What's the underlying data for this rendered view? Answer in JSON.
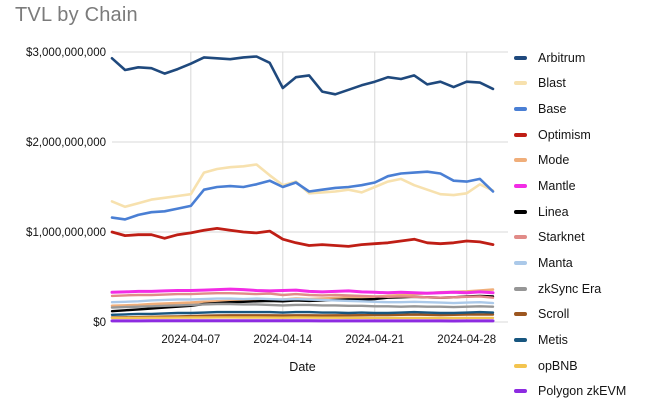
{
  "title": "TVL by Chain",
  "chart_data": {
    "type": "line",
    "title": "TVL by Chain",
    "xlabel": "Date",
    "ylabel": "",
    "ylim_billions": [
      0,
      3
    ],
    "grid": true,
    "legend_position": "right",
    "colors": {
      "background": "#ffffff",
      "gridline": "#d8d8d8",
      "axis_text": "#121212",
      "title_text": "#7b7b7b"
    },
    "x_dates": [
      "2024-04-01",
      "2024-04-02",
      "2024-04-03",
      "2024-04-04",
      "2024-04-05",
      "2024-04-06",
      "2024-04-07",
      "2024-04-08",
      "2024-04-09",
      "2024-04-10",
      "2024-04-11",
      "2024-04-12",
      "2024-04-13",
      "2024-04-14",
      "2024-04-15",
      "2024-04-16",
      "2024-04-17",
      "2024-04-18",
      "2024-04-19",
      "2024-04-20",
      "2024-04-21",
      "2024-04-22",
      "2024-04-23",
      "2024-04-24",
      "2024-04-25",
      "2024-04-26",
      "2024-04-27",
      "2024-04-28",
      "2024-04-29",
      "2024-04-30"
    ],
    "xticks": [
      {
        "index": 6,
        "label": "2024-04-07"
      },
      {
        "index": 13,
        "label": "2024-04-14"
      },
      {
        "index": 20,
        "label": "2024-04-21"
      },
      {
        "index": 27,
        "label": "2024-04-28"
      }
    ],
    "yticks": [
      {
        "value_billions": 0,
        "label": "$0"
      },
      {
        "value_billions": 1,
        "label": "$1,000,000,000"
      },
      {
        "value_billions": 2,
        "label": "$2,000,000,000"
      },
      {
        "value_billions": 3,
        "label": "$3,000,000,000"
      }
    ],
    "series": [
      {
        "name": "Arbitrum",
        "color": "#1f497d",
        "line_width": 2.6,
        "values_billions": [
          2.93,
          2.8,
          2.83,
          2.82,
          2.76,
          2.81,
          2.87,
          2.94,
          2.93,
          2.92,
          2.94,
          2.95,
          2.88,
          2.6,
          2.72,
          2.74,
          2.56,
          2.53,
          2.58,
          2.63,
          2.67,
          2.72,
          2.7,
          2.74,
          2.64,
          2.67,
          2.61,
          2.67,
          2.66,
          2.59
        ]
      },
      {
        "name": "Blast",
        "color": "#f7e1ae",
        "line_width": 2.6,
        "values_billions": [
          1.34,
          1.28,
          1.32,
          1.36,
          1.38,
          1.4,
          1.42,
          1.66,
          1.7,
          1.72,
          1.73,
          1.75,
          1.63,
          1.52,
          1.56,
          1.43,
          1.44,
          1.45,
          1.47,
          1.44,
          1.5,
          1.56,
          1.59,
          1.52,
          1.47,
          1.42,
          1.41,
          1.43,
          1.53,
          1.46
        ]
      },
      {
        "name": "Base",
        "color": "#4a7fd4",
        "line_width": 2.6,
        "values_billions": [
          1.16,
          1.14,
          1.19,
          1.22,
          1.23,
          1.26,
          1.29,
          1.47,
          1.5,
          1.51,
          1.5,
          1.53,
          1.57,
          1.5,
          1.55,
          1.45,
          1.47,
          1.49,
          1.5,
          1.52,
          1.55,
          1.62,
          1.65,
          1.66,
          1.67,
          1.65,
          1.57,
          1.56,
          1.59,
          1.45
        ]
      },
      {
        "name": "Optimism",
        "color": "#bf1e15",
        "line_width": 2.8,
        "values_billions": [
          1.0,
          0.96,
          0.97,
          0.97,
          0.93,
          0.97,
          0.99,
          1.02,
          1.04,
          1.02,
          1.0,
          0.99,
          1.01,
          0.92,
          0.88,
          0.85,
          0.86,
          0.85,
          0.84,
          0.86,
          0.87,
          0.88,
          0.9,
          0.92,
          0.88,
          0.87,
          0.88,
          0.9,
          0.89,
          0.86
        ]
      },
      {
        "name": "Mode",
        "color": "#f0ae7a",
        "line_width": 2.6,
        "values_billions": [
          0.18,
          0.185,
          0.19,
          0.2,
          0.205,
          0.21,
          0.215,
          0.225,
          0.23,
          0.235,
          0.23,
          0.235,
          0.24,
          0.25,
          0.26,
          0.255,
          0.26,
          0.265,
          0.27,
          0.275,
          0.28,
          0.29,
          0.3,
          0.31,
          0.32,
          0.33,
          0.335,
          0.34,
          0.35,
          0.36
        ]
      },
      {
        "name": "Mantle",
        "color": "#f22ce5",
        "line_width": 3,
        "values_billions": [
          0.33,
          0.335,
          0.34,
          0.34,
          0.345,
          0.35,
          0.35,
          0.355,
          0.36,
          0.365,
          0.36,
          0.35,
          0.345,
          0.35,
          0.355,
          0.34,
          0.335,
          0.34,
          0.345,
          0.335,
          0.33,
          0.325,
          0.33,
          0.325,
          0.32,
          0.325,
          0.33,
          0.325,
          0.335,
          0.325
        ]
      },
      {
        "name": "Linea",
        "color": "#000000",
        "line_width": 2.4,
        "values_billions": [
          0.12,
          0.13,
          0.14,
          0.15,
          0.16,
          0.17,
          0.18,
          0.2,
          0.21,
          0.22,
          0.225,
          0.23,
          0.235,
          0.23,
          0.24,
          0.235,
          0.24,
          0.245,
          0.25,
          0.25,
          0.255,
          0.27,
          0.275,
          0.28,
          0.275,
          0.27,
          0.275,
          0.285,
          0.29,
          0.285
        ]
      },
      {
        "name": "Starknet",
        "color": "#e18b88",
        "line_width": 2.4,
        "values_billions": [
          0.29,
          0.295,
          0.3,
          0.3,
          0.305,
          0.31,
          0.31,
          0.315,
          0.32,
          0.32,
          0.315,
          0.31,
          0.315,
          0.3,
          0.31,
          0.3,
          0.295,
          0.3,
          0.295,
          0.29,
          0.285,
          0.28,
          0.285,
          0.28,
          0.275,
          0.27,
          0.275,
          0.28,
          0.285,
          0.27
        ]
      },
      {
        "name": "Manta",
        "color": "#abc9e9",
        "line_width": 2.4,
        "values_billions": [
          0.22,
          0.225,
          0.23,
          0.24,
          0.245,
          0.25,
          0.25,
          0.255,
          0.26,
          0.26,
          0.255,
          0.26,
          0.255,
          0.25,
          0.255,
          0.25,
          0.245,
          0.24,
          0.235,
          0.23,
          0.225,
          0.22,
          0.22,
          0.225,
          0.22,
          0.215,
          0.21,
          0.215,
          0.22,
          0.21
        ]
      },
      {
        "name": "zkSync Era",
        "color": "#969696",
        "line_width": 2.4,
        "values_billions": [
          0.16,
          0.165,
          0.17,
          0.175,
          0.18,
          0.185,
          0.19,
          0.195,
          0.2,
          0.2,
          0.195,
          0.195,
          0.19,
          0.185,
          0.19,
          0.19,
          0.185,
          0.185,
          0.18,
          0.18,
          0.175,
          0.175,
          0.17,
          0.175,
          0.17,
          0.17,
          0.165,
          0.17,
          0.175,
          0.17
        ]
      },
      {
        "name": "Scroll",
        "color": "#9c5620",
        "line_width": 2.4,
        "values_billions": [
          0.05,
          0.052,
          0.055,
          0.058,
          0.06,
          0.062,
          0.065,
          0.07,
          0.072,
          0.074,
          0.075,
          0.075,
          0.074,
          0.072,
          0.075,
          0.074,
          0.073,
          0.074,
          0.075,
          0.076,
          0.077,
          0.078,
          0.08,
          0.082,
          0.08,
          0.078,
          0.08,
          0.082,
          0.084,
          0.082
        ]
      },
      {
        "name": "Metis",
        "color": "#17567f",
        "line_width": 2.4,
        "values_billions": [
          0.08,
          0.085,
          0.09,
          0.09,
          0.095,
          0.1,
          0.1,
          0.105,
          0.11,
          0.11,
          0.11,
          0.11,
          0.11,
          0.105,
          0.11,
          0.11,
          0.105,
          0.105,
          0.1,
          0.105,
          0.1,
          0.1,
          0.105,
          0.11,
          0.105,
          0.1,
          0.1,
          0.105,
          0.11,
          0.105
        ]
      },
      {
        "name": "opBNB",
        "color": "#f3c44f",
        "line_width": 2.4,
        "values_billions": [
          0.045,
          0.046,
          0.047,
          0.048,
          0.048,
          0.049,
          0.05,
          0.05,
          0.051,
          0.051,
          0.05,
          0.05,
          0.049,
          0.048,
          0.05,
          0.049,
          0.048,
          0.048,
          0.047,
          0.047,
          0.046,
          0.046,
          0.045,
          0.046,
          0.045,
          0.044,
          0.044,
          0.045,
          0.046,
          0.045
        ]
      },
      {
        "name": "Polygon zkEVM",
        "color": "#8d2be1",
        "line_width": 3,
        "values_billions": [
          0.012,
          0.012,
          0.012,
          0.013,
          0.013,
          0.013,
          0.013,
          0.014,
          0.014,
          0.014,
          0.013,
          0.013,
          0.013,
          0.013,
          0.013,
          0.013,
          0.012,
          0.012,
          0.012,
          0.012,
          0.012,
          0.012,
          0.012,
          0.012,
          0.012,
          0.012,
          0.011,
          0.012,
          0.012,
          0.012
        ]
      }
    ]
  }
}
